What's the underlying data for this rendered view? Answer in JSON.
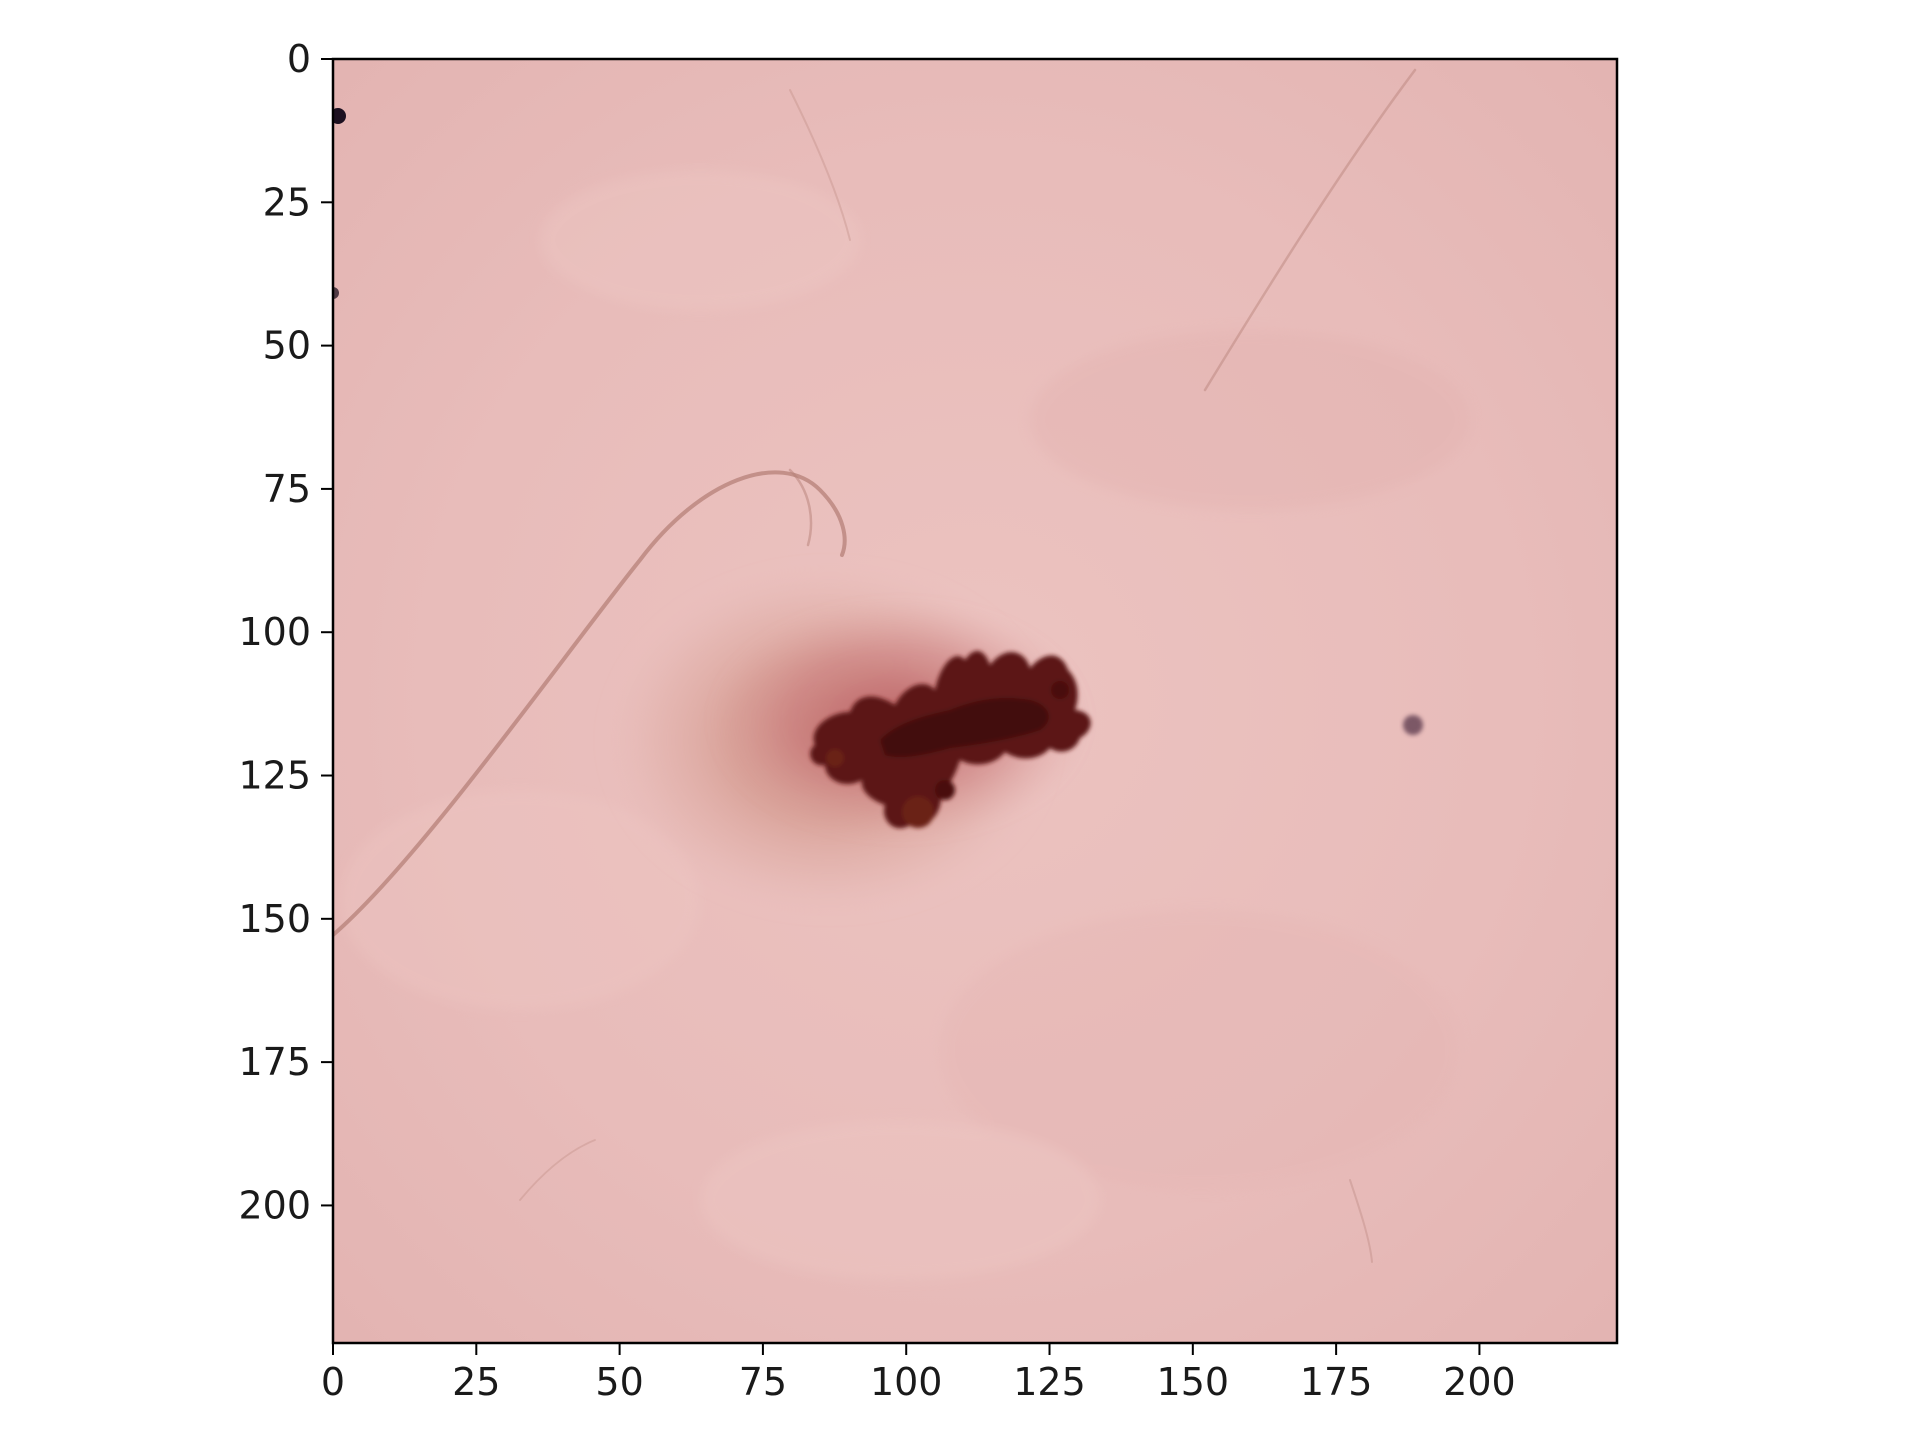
{
  "image": {
    "description_icon": "dermoscopy-skin-lesion",
    "x_extent": [
      0,
      224
    ],
    "y_extent": [
      0,
      224
    ],
    "y_inverted": true,
    "colors": {
      "skin": "#e9bdbb",
      "skin_light": "#efcac6",
      "halo": "#d69a8e",
      "halo_red": "#c97a78",
      "lesion_dark": "#5b1712",
      "lesion_core": "#3f0c0a",
      "hair": "#b07a72",
      "dot": "#4a2a3a"
    }
  },
  "axes": {
    "x_ticks": [
      0,
      25,
      50,
      75,
      100,
      125,
      150,
      175,
      200
    ],
    "x_tick_labels": [
      "0",
      "25",
      "50",
      "75",
      "100",
      "125",
      "150",
      "175",
      "200"
    ],
    "y_ticks": [
      0,
      25,
      50,
      75,
      100,
      125,
      150,
      175,
      200
    ],
    "y_tick_labels": [
      "0",
      "25",
      "50",
      "75",
      "100",
      "125",
      "150",
      "175",
      "200"
    ]
  }
}
